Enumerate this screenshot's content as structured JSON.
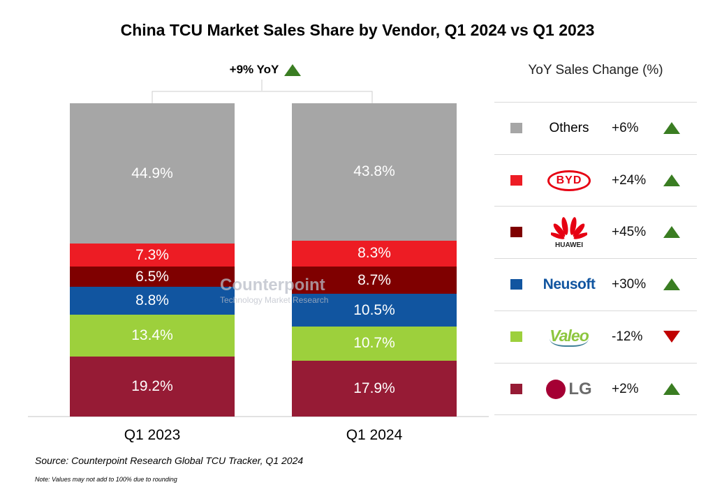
{
  "chart_data": {
    "type": "bar",
    "stacked": true,
    "title": "China TCU Market Sales Share by Vendor, Q1 2024 vs Q1 2023",
    "categories": [
      "Q1 2023",
      "Q1 2024"
    ],
    "unit": "%",
    "ylim": [
      0,
      100
    ],
    "series": [
      {
        "name": "LG",
        "color": "#961b35",
        "values": [
          19.2,
          17.9
        ],
        "labels": [
          "19.2%",
          "17.9%"
        ],
        "yoy": "+2%",
        "trend": "up"
      },
      {
        "name": "Valeo",
        "color": "#9dd03c",
        "values": [
          13.4,
          10.7
        ],
        "labels": [
          "13.4%",
          "10.7%"
        ],
        "yoy": "-12%",
        "trend": "down"
      },
      {
        "name": "Neusoft",
        "color": "#1155a0",
        "values": [
          8.8,
          10.5
        ],
        "labels": [
          "8.8%",
          "10.5%"
        ],
        "yoy": "+30%",
        "trend": "up"
      },
      {
        "name": "HUAWEI",
        "color": "#7f0000",
        "values": [
          6.5,
          8.7
        ],
        "labels": [
          "6.5%",
          "8.7%"
        ],
        "yoy": "+45%",
        "trend": "up"
      },
      {
        "name": "BYD",
        "color": "#ed1c24",
        "values": [
          7.3,
          8.3
        ],
        "labels": [
          "7.3%",
          "8.3%"
        ],
        "yoy": "+24%",
        "trend": "up"
      },
      {
        "name": "Others",
        "color": "#a6a6a6",
        "values": [
          44.9,
          43.8
        ],
        "labels": [
          "44.9%",
          "43.8%"
        ],
        "yoy": "+6%",
        "trend": "up"
      }
    ],
    "total_change": "+9% YoY",
    "legend_title": "YoY Sales Change (%)",
    "legend_placement": "right",
    "grid": false
  },
  "source": "Source: Counterpoint Research Global TCU Tracker, Q1 2024",
  "note": "Note: Values may not add to 100% due to rounding",
  "watermark": {
    "brand": "Counterpoint",
    "tagline": "Technology Market Research"
  },
  "colors": {
    "up": "#3a7d22",
    "down": "#c00000"
  }
}
